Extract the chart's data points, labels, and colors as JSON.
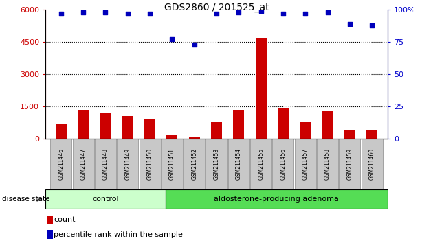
{
  "title": "GDS2860 / 201525_at",
  "samples": [
    "GSM211446",
    "GSM211447",
    "GSM211448",
    "GSM211449",
    "GSM211450",
    "GSM211451",
    "GSM211452",
    "GSM211453",
    "GSM211454",
    "GSM211455",
    "GSM211456",
    "GSM211457",
    "GSM211458",
    "GSM211459",
    "GSM211460"
  ],
  "counts": [
    700,
    1350,
    1200,
    1050,
    900,
    150,
    80,
    800,
    1350,
    4650,
    1400,
    750,
    1300,
    380,
    380
  ],
  "percentiles": [
    97,
    98,
    98,
    97,
    97,
    77,
    73,
    97,
    98,
    99,
    97,
    97,
    98,
    89,
    88
  ],
  "left_ylim": [
    0,
    6000
  ],
  "right_ylim": [
    0,
    100
  ],
  "left_yticks": [
    0,
    1500,
    3000,
    4500,
    6000
  ],
  "right_yticks": [
    0,
    25,
    50,
    75,
    100
  ],
  "left_ytick_labels": [
    "0",
    "1500",
    "3000",
    "4500",
    "6000"
  ],
  "right_ytick_labels": [
    "0",
    "25",
    "50",
    "75",
    "100%"
  ],
  "n_control": 5,
  "n_adenoma": 10,
  "control_label": "control",
  "adenoma_label": "aldosterone-producing adenoma",
  "disease_state_label": "disease state",
  "control_color": "#ccffcc",
  "adenoma_color": "#55dd55",
  "bar_color": "#cc0000",
  "dot_color": "#0000bb",
  "axis_left_color": "#cc0000",
  "axis_right_color": "#0000cc",
  "grid_color": "black",
  "bar_width": 0.5,
  "legend_count_label": "count",
  "legend_pct_label": "percentile rank within the sample",
  "bg_color": "#ffffff",
  "figsize": [
    6.3,
    3.54
  ],
  "dpi": 100
}
